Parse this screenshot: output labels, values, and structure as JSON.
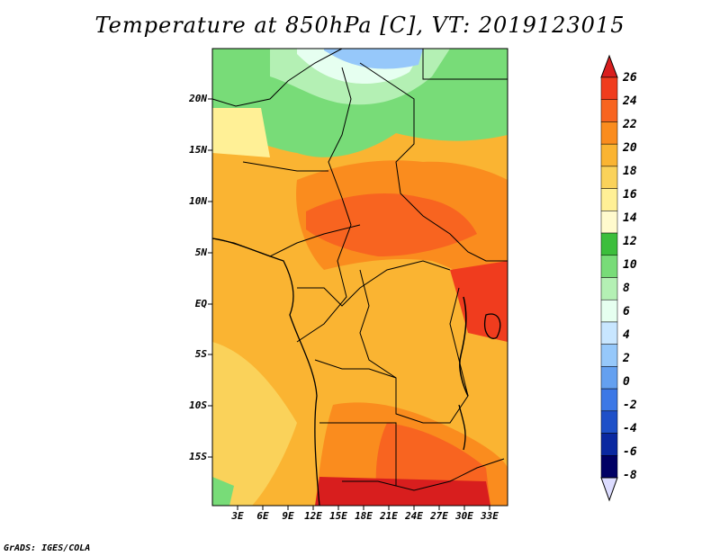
{
  "title": "Temperature at 850hPa [C], VT: 2019123015",
  "credit": "GrADS: IGES/COLA",
  "lat_ticks": [
    "20N",
    "15N",
    "10N",
    "5N",
    "EQ",
    "5S",
    "10S",
    "15S"
  ],
  "lon_ticks": [
    "3E",
    "6E",
    "9E",
    "12E",
    "15E",
    "18E",
    "21E",
    "24E",
    "27E",
    "30E",
    "33E"
  ],
  "colorbar": {
    "labels": [
      "26",
      "24",
      "22",
      "20",
      "18",
      "16",
      "14",
      "12",
      "10",
      "8",
      "6",
      "4",
      "2",
      "0",
      "-2",
      "-4",
      "-6",
      "-8"
    ],
    "colors": [
      "#d81e1e",
      "#f03c1e",
      "#f86420",
      "#fa8c1e",
      "#fab432",
      "#fad25a",
      "#fff096",
      "#fffacd",
      "#3cbe3c",
      "#78dc78",
      "#b4f0b4",
      "#e6fff0",
      "#c8e6ff",
      "#96c8fa",
      "#64a0f0",
      "#3c78e6",
      "#1e50c8",
      "#0a28a0",
      "#000064",
      "#dcdcff"
    ]
  }
}
